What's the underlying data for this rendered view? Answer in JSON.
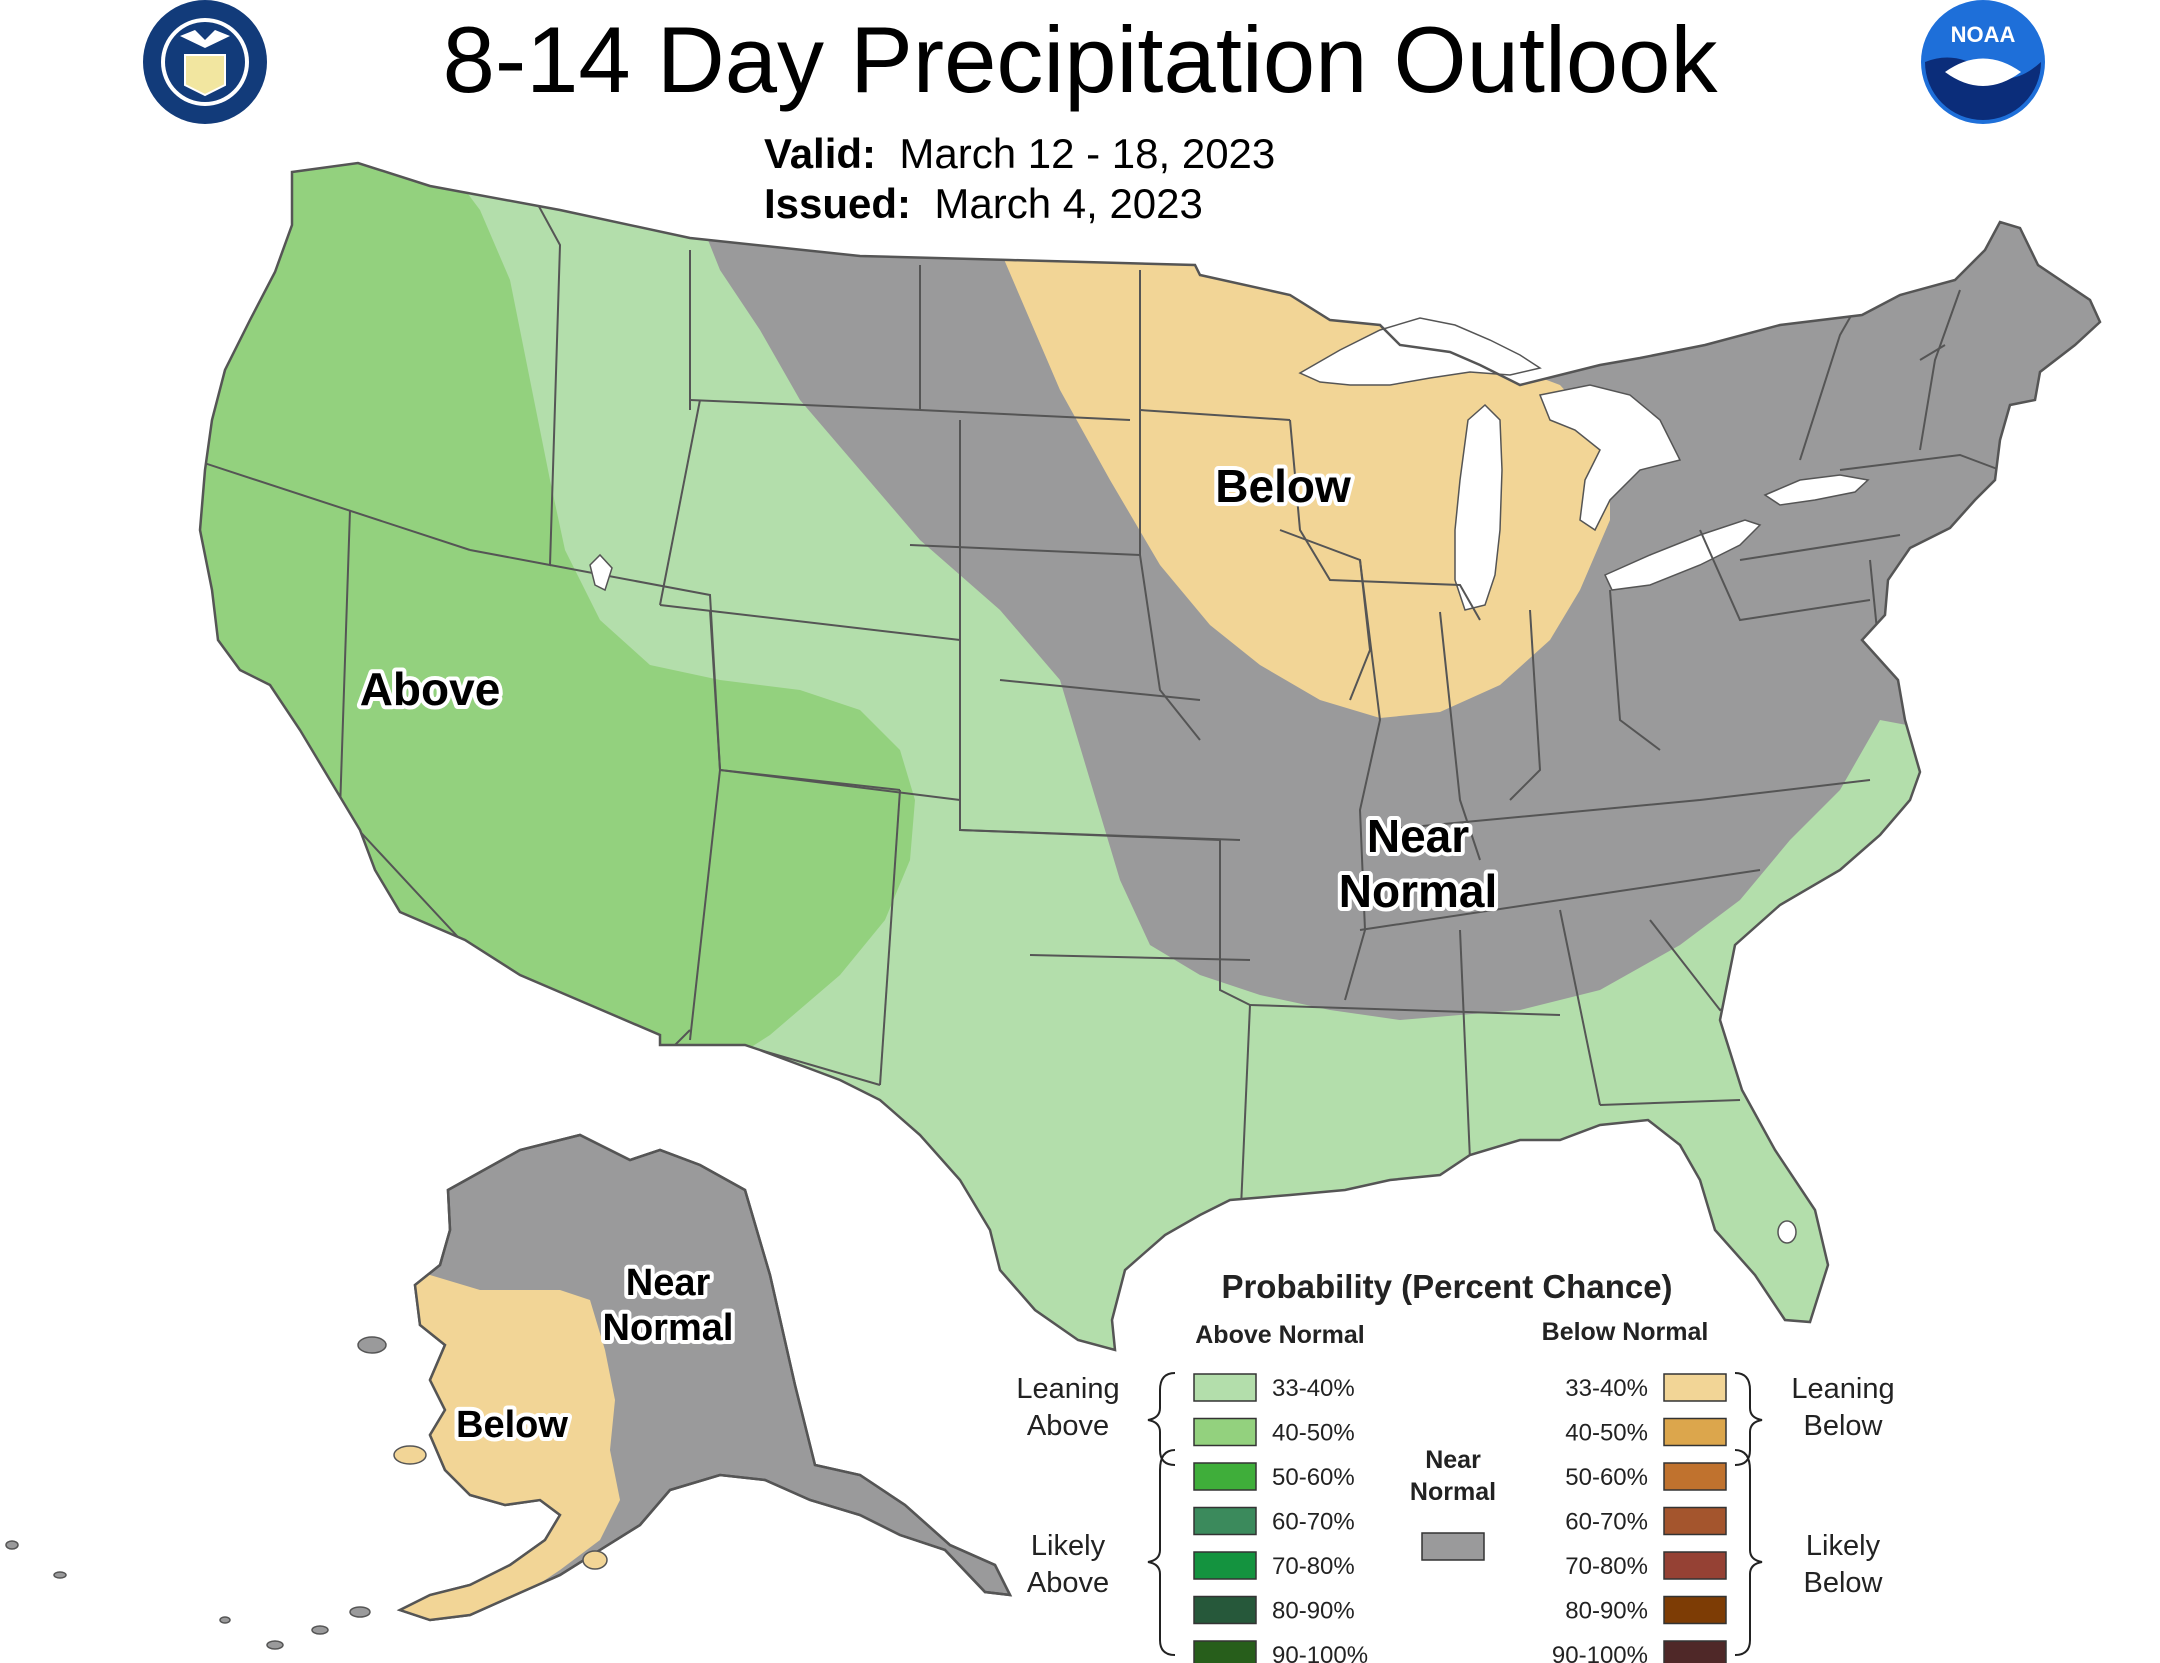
{
  "title": "8-14 Day Precipitation Outlook",
  "valid": {
    "label": "Valid:",
    "value": "March 12 - 18, 2023"
  },
  "issued": {
    "label": "Issued:",
    "value": "March 4, 2023"
  },
  "logos": {
    "left": "department-of-commerce-seal",
    "right": "noaa-logo"
  },
  "colors": {
    "above_leaning": "#b3deab",
    "above_40_50": "#93d17e",
    "below_leaning": "#f2d596",
    "near_normal": "#9a9a9b",
    "state_border": "#555555"
  },
  "map_labels": {
    "above": "Above",
    "below": "Below",
    "near_normal_1": "Near",
    "near_normal_2": "Normal",
    "ak_near_1": "Near",
    "ak_near_2": "Normal",
    "ak_below": "Below"
  },
  "legend": {
    "title": "Probability (Percent Chance)",
    "above_header": "Above Normal",
    "below_header": "Below Normal",
    "leaning_above_1": "Leaning",
    "leaning_above_2": "Above",
    "likely_above_1": "Likely",
    "likely_above_2": "Above",
    "leaning_below_1": "Leaning",
    "leaning_below_2": "Below",
    "likely_below_1": "Likely",
    "likely_below_2": "Below",
    "near_1": "Near",
    "near_2": "Normal",
    "near_color": "#9a9a9b",
    "above": [
      {
        "label": "33-40%",
        "color": "#b3deab"
      },
      {
        "label": "40-50%",
        "color": "#93d17e"
      },
      {
        "label": "50-60%",
        "color": "#3fae3a"
      },
      {
        "label": "60-70%",
        "color": "#3b8a5c"
      },
      {
        "label": "70-80%",
        "color": "#14933f"
      },
      {
        "label": "80-90%",
        "color": "#26583a"
      },
      {
        "label": "90-100%",
        "color": "#275e1b"
      }
    ],
    "below": [
      {
        "label": "33-40%",
        "color": "#f2d596"
      },
      {
        "label": "40-50%",
        "color": "#dca64c"
      },
      {
        "label": "50-60%",
        "color": "#c0722e"
      },
      {
        "label": "60-70%",
        "color": "#a4552d"
      },
      {
        "label": "70-80%",
        "color": "#954134"
      },
      {
        "label": "80-90%",
        "color": "#7d3c05"
      },
      {
        "label": "90-100%",
        "color": "#4f2828"
      }
    ]
  }
}
